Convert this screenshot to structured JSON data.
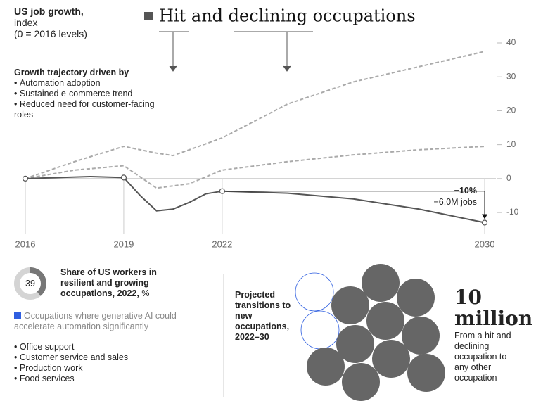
{
  "chart_data": [
    {
      "type": "line",
      "title": "Hit and declining occupations",
      "y_label": [
        "US job growth,",
        "index",
        "(0 = 2016 levels)"
      ],
      "drivers_title": "Growth trajectory driven by",
      "drivers": [
        "Automation adoption",
        "Sustained e-commerce trend",
        "Reduced need for customer-facing roles"
      ],
      "annotation": [
        "−10%",
        "−6.0M jobs"
      ],
      "xlim": [
        2016,
        2030
      ],
      "xticks": [
        2016,
        2019,
        2022,
        2030
      ],
      "ylim": [
        -16,
        40
      ],
      "yticks": [
        -10,
        0,
        10,
        20,
        30,
        40
      ],
      "series": [
        {
          "color": "#aaaaaa",
          "style": "dashed",
          "x": [
            2016,
            2017.5,
            2019,
            2020,
            2020.5,
            2021,
            2022,
            2024,
            2026,
            2028,
            2030
          ],
          "values": [
            0,
            5,
            9.5,
            7.5,
            6.8,
            8.5,
            12,
            22,
            28.5,
            33,
            37.5
          ]
        },
        {
          "color": "#aaaaaa",
          "style": "dashed",
          "x": [
            2016,
            2017.5,
            2019,
            2019.5,
            2020,
            2021,
            2022,
            2024,
            2026,
            2028,
            2030
          ],
          "values": [
            0,
            2.5,
            3.8,
            0.5,
            -2.8,
            -1.5,
            2.5,
            5,
            7,
            8.5,
            9.5
          ]
        },
        {
          "color": "#555555",
          "style": "solid",
          "x": [
            2016,
            2017,
            2018,
            2019,
            2019.5,
            2020,
            2020.5,
            2021,
            2021.5,
            2022,
            2024,
            2026,
            2028,
            2030
          ],
          "values": [
            0,
            0.3,
            0.6,
            0.3,
            -5,
            -9.5,
            -9,
            -7,
            -4.5,
            -3.7,
            -4.3,
            -6,
            -9,
            -13
          ],
          "markers_at": [
            2016,
            2019,
            2022,
            2030
          ]
        }
      ]
    },
    {
      "type": "donut",
      "title": "Share of US workers in resilient and growing occupations, 2022,",
      "unit": "%",
      "values": [
        39
      ],
      "total": 100,
      "color": "#777777",
      "track_color": "#d4d4d4"
    }
  ],
  "legend": {
    "color": "#2f5fe0",
    "label": "Occupations where generative AI could accelerate automation significantly"
  },
  "occupations": [
    "Office support",
    "Customer service and sales",
    "Production work",
    "Food services"
  ],
  "transitions": {
    "label": "Projected transitions to new occupations, 2022–30",
    "headline": "10 million",
    "note": "From a hit and declining occupation to any other occupation"
  }
}
